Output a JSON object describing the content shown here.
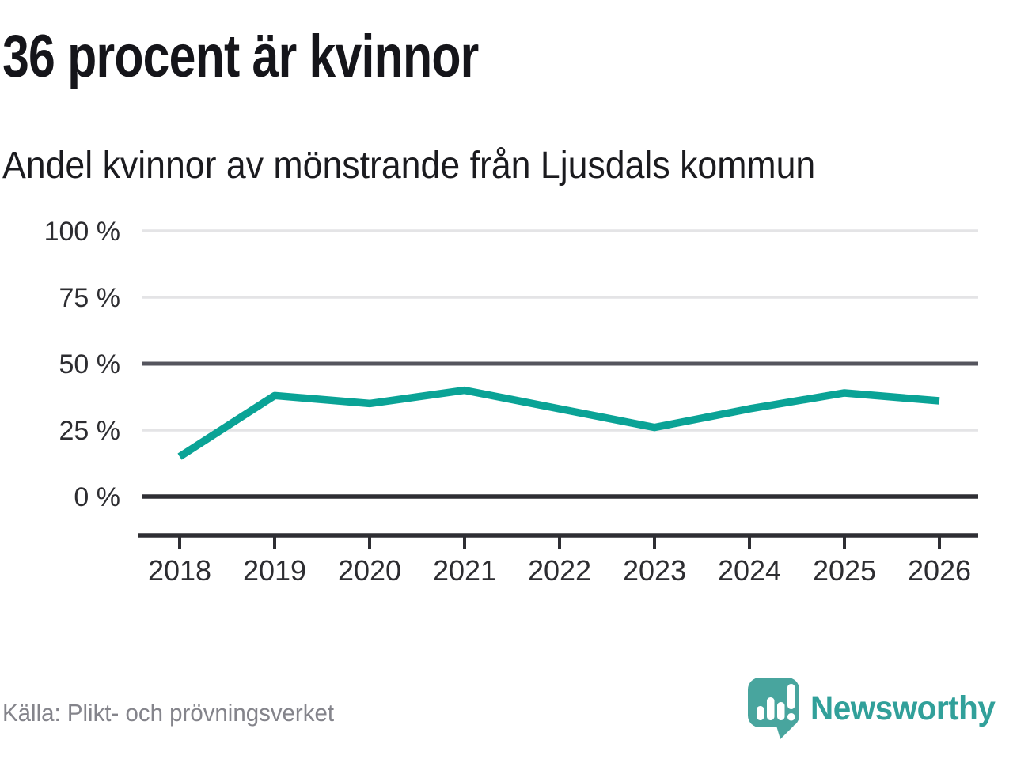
{
  "header": {
    "title": "36 procent är kvinnor",
    "subtitle": "Andel kvinnor av mönstrande från Ljusdals kommun"
  },
  "footer": {
    "source": "Källa: Plikt- och prövningsverket",
    "brand": "Newsworthy",
    "brand_icon": "bar-chart-speech-bubble-icon"
  },
  "chart_data": {
    "type": "line",
    "title": "36 procent är kvinnor",
    "subtitle": "Andel kvinnor av mönstrande från Ljusdals kommun",
    "x": [
      2018,
      2019,
      2020,
      2021,
      2022,
      2023,
      2024,
      2025,
      2026
    ],
    "series": [
      {
        "name": "Andel kvinnor av mönstrande",
        "values": [
          15,
          38,
          35,
          40,
          33,
          26,
          33,
          39,
          36
        ]
      }
    ],
    "ylim": [
      0,
      100
    ],
    "yticks": [
      0,
      25,
      50,
      75,
      100
    ],
    "ytick_labels": [
      "0 %",
      "25 %",
      "50 %",
      "75 %",
      "100 %"
    ],
    "xtick_labels": [
      "2018",
      "2019",
      "2020",
      "2021",
      "2022",
      "2023",
      "2024",
      "2025",
      "2026"
    ],
    "grid": "horizontal",
    "emphasized_gridlines": [
      50
    ],
    "baseline_gridline": 0,
    "legend": "none",
    "source": "Källa: Plikt- och prövningsverket",
    "colors": {
      "line": "#0aa396",
      "grid_light": "#e4e4e6",
      "grid_mid": "#55555e",
      "grid_zero": "#2e2e33",
      "tick_label": "#2d2d31",
      "title": "#15151a",
      "source_text": "#84848b",
      "brand_teal": "#31a09a",
      "brand_bubble": "#48a59e"
    }
  }
}
